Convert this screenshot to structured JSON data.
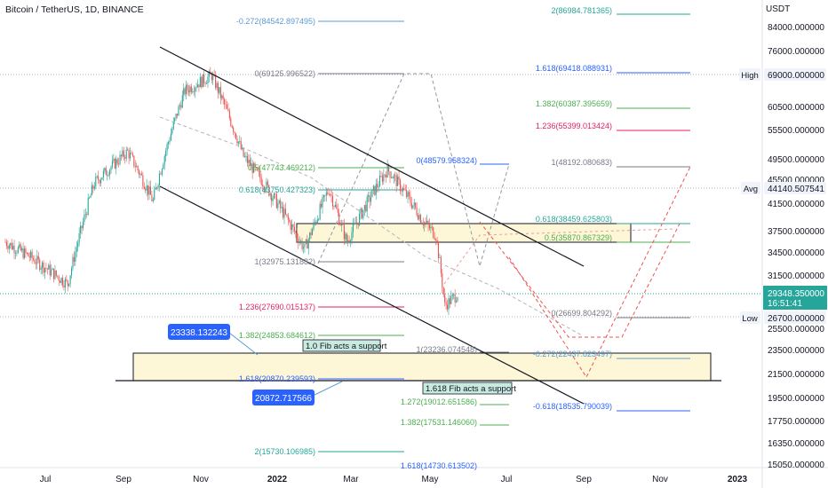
{
  "header": {
    "symbol_line": "Bitcoin / TetherUS, 1D, BINANCE"
  },
  "colors": {
    "up": "#26a69a",
    "down": "#ef5350",
    "fib_teal": "#26a69a",
    "fib_blue": "#2962ff",
    "fib_red": "#e91e63",
    "fib_gray": "#787b86",
    "fib_green": "#4caf50",
    "fib_lightblue": "#5b9bd5",
    "zone_fill": "#fdf7d8",
    "badge_blue": "#2962ff",
    "price_badge": "#26a69a"
  },
  "price_axis": {
    "currency": "USDT",
    "ticks": [
      "84000.000000",
      "76000.000000",
      "69000.000000",
      "60500.000000",
      "55500.000000",
      "49500.000000",
      "45500.000000",
      "41500.000000",
      "37500.000000",
      "34500.000000",
      "31500.000000",
      "29500.000000",
      "25500.000000",
      "23500.000000",
      "21500.000000",
      "19500.000000",
      "17750.000000",
      "16350.000000",
      "15050.000000"
    ],
    "markers": [
      {
        "label": "High",
        "value": "69000.000000"
      },
      {
        "label": "Avg",
        "value": "44140.507541"
      },
      {
        "label": "Low",
        "value": "26700.000000"
      }
    ],
    "current_price": "29348.350000",
    "countdown": "16:51:41"
  },
  "time_axis": {
    "ticks": [
      "Jul",
      "Sep",
      "Nov",
      "2022",
      "Mar",
      "May",
      "Jul",
      "Sep",
      "Nov",
      "2023"
    ]
  },
  "fib_labels": [
    {
      "text": "-0.272(84542.897495)",
      "color": "#5b9bd5"
    },
    {
      "text": "0(69125.996522)",
      "color": "#787b86"
    },
    {
      "text": "0.5(47743.469212)",
      "color": "#4caf50"
    },
    {
      "text": "0.618(43750.427323)",
      "color": "#26a69a"
    },
    {
      "text": "1(32975.131882)",
      "color": "#787b86"
    },
    {
      "text": "1.236(27690.015137)",
      "color": "#e91e63"
    },
    {
      "text": "1.382(24853.684612)",
      "color": "#4caf50"
    },
    {
      "text": "1.618(20870.239593)",
      "color": "#2962ff"
    },
    {
      "text": "2(15730.106985)",
      "color": "#26a69a"
    },
    {
      "text": "0(48579.958324)",
      "color": "#2962ff"
    },
    {
      "text": "1(23236.074548)",
      "color": "#787b86"
    },
    {
      "text": "1.272(19012.651586)",
      "color": "#4caf50"
    },
    {
      "text": "1.382(17531.146060)",
      "color": "#4caf50"
    },
    {
      "text": "1.618(14730.613502)",
      "color": "#2962ff"
    },
    {
      "text": "2(86984.781365)",
      "color": "#26a69a"
    },
    {
      "text": "1.618(69418.088931)",
      "color": "#2962ff"
    },
    {
      "text": "1.382(60387.395659)",
      "color": "#4caf50"
    },
    {
      "text": "1.236(55399.013424)",
      "color": "#e91e63"
    },
    {
      "text": "1(48192.080683)",
      "color": "#787b86"
    },
    {
      "text": "0.618(38459.625803)",
      "color": "#26a69a"
    },
    {
      "text": "0.5(35870.867329)",
      "color": "#4caf50"
    },
    {
      "text": "0(26699.804292)",
      "color": "#787b86"
    },
    {
      "text": "-0.272(22437.823497)",
      "color": "#5b9bd5"
    },
    {
      "text": "-0.618(18535.790039)",
      "color": "#2962ff"
    }
  ],
  "annotations": {
    "support_1": "1.0 Fib acts a support",
    "support_1618": "1.618 Fib acts a support",
    "badge_1": "23338.132243",
    "badge_2": "20872.717566"
  },
  "chart_data": {
    "type": "candlestick",
    "title": "Bitcoin / TetherUS, 1D, BINANCE",
    "y_unit": "USDT",
    "x_range": [
      "2021-06-01",
      "2023-01-15"
    ],
    "series": [
      {
        "kind": "close_approx",
        "points": [
          [
            "2021-06-01",
            36000
          ],
          [
            "2021-06-20",
            34000
          ],
          [
            "2021-07-20",
            30500
          ],
          [
            "2021-08-10",
            45000
          ],
          [
            "2021-09-05",
            51000
          ],
          [
            "2021-09-25",
            42000
          ],
          [
            "2021-10-20",
            65000
          ],
          [
            "2021-11-10",
            69000
          ],
          [
            "2021-12-05",
            50000
          ],
          [
            "2022-01-22",
            35000
          ],
          [
            "2022-02-10",
            44000
          ],
          [
            "2022-02-24",
            36000
          ],
          [
            "2022-03-28",
            47500
          ],
          [
            "2022-04-25",
            39000
          ],
          [
            "2022-05-05",
            37000
          ],
          [
            "2022-05-12",
            28000
          ],
          [
            "2022-05-22",
            29348
          ]
        ]
      }
    ],
    "trend_channel": {
      "upper": [
        [
          "2021-09-20",
          76000
        ],
        [
          "2022-07-20",
          32000
        ]
      ],
      "lower": [
        [
          "2021-09-20",
          46000
        ],
        [
          "2022-09-10",
          19000
        ]
      ]
    },
    "zones": [
      {
        "from_date": "2022-01-01",
        "to_date": "2022-07-25",
        "from_price": 35870,
        "to_price": 38460
      },
      {
        "from_date": "2021-09-05",
        "to_date": "2022-11-25",
        "from_price": 20870,
        "to_price": 23336
      }
    ],
    "fibonacci_levels": [
      {
        "ratio": "-0.272",
        "price": 84542.897495
      },
      {
        "ratio": "0",
        "price": 69125.996522
      },
      {
        "ratio": "0.5",
        "price": 47743.469212
      },
      {
        "ratio": "0.618",
        "price": 43750.427323
      },
      {
        "ratio": "1",
        "price": 32975.131882
      },
      {
        "ratio": "1.236",
        "price": 27690.015137
      },
      {
        "ratio": "1.382",
        "price": 24853.684612
      },
      {
        "ratio": "1.618",
        "price": 20870.239593
      },
      {
        "ratio": "2",
        "price": 15730.106985
      }
    ]
  }
}
